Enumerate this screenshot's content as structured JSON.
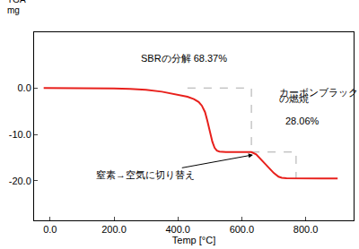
{
  "chart_data": {
    "type": "line",
    "y_label": [
      "TGA",
      "mg"
    ],
    "x_label": "Temp [°C]",
    "x": [
      -20,
      0,
      100,
      200,
      250,
      300,
      350,
      400,
      430,
      450,
      465,
      475,
      485,
      492,
      500,
      508,
      515,
      522,
      530,
      550,
      600,
      630,
      645,
      660,
      680,
      700,
      715,
      725,
      740,
      780,
      850,
      900
    ],
    "series": [
      {
        "name": "TGA",
        "color": "#e8201c",
        "values": [
          0,
          0,
          -0.05,
          -0.1,
          -0.2,
          -0.4,
          -0.8,
          -1.4,
          -1.9,
          -2.4,
          -3.0,
          -3.8,
          -5.2,
          -7.0,
          -9.3,
          -11.6,
          -12.9,
          -13.5,
          -13.7,
          -13.8,
          -13.8,
          -13.8,
          -14.3,
          -15.4,
          -16.9,
          -18.3,
          -19.1,
          -19.35,
          -19.45,
          -19.5,
          -19.5,
          -19.5
        ]
      }
    ],
    "reference_lines": [
      {
        "x": [
          430,
          630,
          630
        ],
        "y": [
          0,
          0,
          -13.8
        ],
        "color": "#aaaaaa",
        "line_style": "dash"
      },
      {
        "x": [
          630,
          770,
          770
        ],
        "y": [
          -13.8,
          -13.8,
          -19.45
        ],
        "color": "#aaaaaa",
        "line_style": "dash"
      }
    ],
    "annotations": [
      "SBRの分解 68.37%",
      "カーボンブラック",
      "の燃焼",
      "28.06%",
      "窒素→空気に切り替え"
    ],
    "xlim": [
      -50,
      950
    ],
    "xticks": [
      {
        "value": 0,
        "label": "0.0"
      },
      {
        "value": 200,
        "label": "200.0"
      },
      {
        "value": 400,
        "label": "400.0"
      },
      {
        "value": 600,
        "label": "600.0"
      },
      {
        "value": 800,
        "label": "800.0"
      }
    ],
    "ylim": [
      -28.5,
      12
    ],
    "yticks": [
      {
        "value": 0,
        "label": "0.0"
      },
      {
        "value": -10,
        "label": "-10.0"
      },
      {
        "value": -20,
        "label": "-20.0"
      }
    ],
    "grid": false
  }
}
